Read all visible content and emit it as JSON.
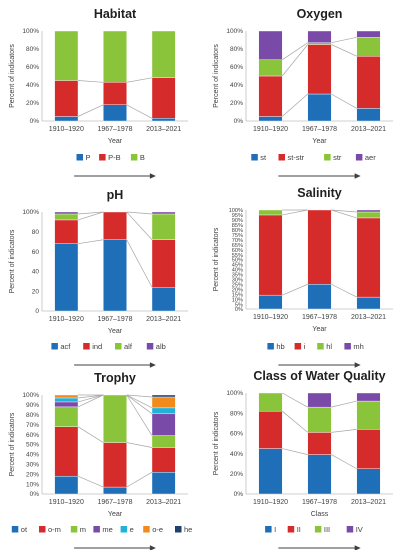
{
  "colors": {
    "blue": "#1f6fb8",
    "red": "#d62b2b",
    "green": "#8ac43a",
    "purple": "#7a4aa8",
    "cyan": "#22b1d8",
    "orange": "#f28a1c",
    "navy": "#1f3f6e",
    "connector": "#a6a6a6",
    "arrow": "#404040"
  },
  "chart_data": [
    {
      "type": "bar",
      "stacked": true,
      "title": "Habitat",
      "xlabel": "Year",
      "ylabel": "Percent of indicators",
      "ylim": [
        0,
        100
      ],
      "y_ticks": [
        "0%",
        "20%",
        "40%",
        "60%",
        "80%",
        "100%"
      ],
      "categories": [
        "1910–1920",
        "1967–1978",
        "2013–2021"
      ],
      "series": [
        {
          "name": "P",
          "color": "#1f6fb8",
          "values": [
            5,
            18,
            3
          ]
        },
        {
          "name": "P-B",
          "color": "#d62b2b",
          "values": [
            40,
            25,
            45
          ]
        },
        {
          "name": "B",
          "color": "#8ac43a",
          "values": [
            55,
            57,
            52
          ]
        }
      ],
      "connectors": true,
      "legend_position": "bottom"
    },
    {
      "type": "bar",
      "stacked": true,
      "title": "Oxygen",
      "xlabel": "Year",
      "ylabel": "Percent of indicators",
      "ylim": [
        0,
        100
      ],
      "y_ticks": [
        "0%",
        "20%",
        "40%",
        "60%",
        "80%",
        "100%"
      ],
      "categories": [
        "1910–1920",
        "1967–1978",
        "2013–2021"
      ],
      "series": [
        {
          "name": "st",
          "color": "#1f6fb8",
          "values": [
            5,
            30,
            14
          ]
        },
        {
          "name": "st-str",
          "color": "#d62b2b",
          "values": [
            45,
            55,
            58
          ]
        },
        {
          "name": "str",
          "color": "#8ac43a",
          "values": [
            18,
            2,
            21
          ]
        },
        {
          "name": "aer",
          "color": "#7a4aa8",
          "values": [
            32,
            13,
            7
          ]
        }
      ],
      "connectors": true,
      "legend_position": "bottom"
    },
    {
      "type": "bar",
      "stacked": true,
      "title": "pH",
      "xlabel": "Year",
      "ylabel": "Percent of indicators",
      "ylim": [
        0,
        100
      ],
      "y_ticks": [
        "0",
        "20",
        "40",
        "60",
        "80",
        "100%"
      ],
      "categories": [
        "1910–1920",
        "1967–1978",
        "2013–2021"
      ],
      "series": [
        {
          "name": "acf",
          "color": "#1f6fb8",
          "values": [
            68,
            72,
            24
          ]
        },
        {
          "name": "ind",
          "color": "#d62b2b",
          "values": [
            24,
            28,
            48
          ]
        },
        {
          "name": "alf",
          "color": "#8ac43a",
          "values": [
            6,
            0,
            26
          ]
        },
        {
          "name": "alb",
          "color": "#7a4aa8",
          "values": [
            2,
            0,
            2
          ]
        }
      ],
      "connectors": true,
      "legend_position": "bottom"
    },
    {
      "type": "bar",
      "stacked": true,
      "title": "Salinity",
      "xlabel": "Year",
      "ylabel": "Percent of indicators",
      "ylim": [
        0,
        100
      ],
      "y_ticks": [
        "0%",
        "5%",
        "10%",
        "15%",
        "20%",
        "25%",
        "30%",
        "35%",
        "40%",
        "45%",
        "50%",
        "55%",
        "60%",
        "65%",
        "70%",
        "75%",
        "80%",
        "85%",
        "90%",
        "95%",
        "100%"
      ],
      "categories": [
        "1910–1920",
        "1967–1978",
        "2013–2021"
      ],
      "series": [
        {
          "name": "hb",
          "color": "#1f6fb8",
          "values": [
            14,
            25,
            12
          ]
        },
        {
          "name": "i",
          "color": "#d62b2b",
          "values": [
            81,
            75,
            80
          ]
        },
        {
          "name": "hl",
          "color": "#8ac43a",
          "values": [
            5,
            0,
            6
          ]
        },
        {
          "name": "mh",
          "color": "#7a4aa8",
          "values": [
            0,
            0,
            2
          ]
        }
      ],
      "connectors": true,
      "legend_position": "bottom"
    },
    {
      "type": "bar",
      "stacked": true,
      "title": "Trophy",
      "xlabel": "Year",
      "ylabel": "Percent of indicators",
      "ylim": [
        0,
        100
      ],
      "y_ticks": [
        "0%",
        "10%",
        "20%",
        "30%",
        "40%",
        "50%",
        "60%",
        "70%",
        "80%",
        "90%",
        "100%"
      ],
      "categories": [
        "1910–1920",
        "1967–1978",
        "2013–2021"
      ],
      "series": [
        {
          "name": "ot",
          "color": "#1f6fb8",
          "values": [
            18,
            7,
            22
          ]
        },
        {
          "name": "o-m",
          "color": "#d62b2b",
          "values": [
            50,
            45,
            25
          ]
        },
        {
          "name": "m",
          "color": "#8ac43a",
          "values": [
            20,
            48,
            12
          ]
        },
        {
          "name": "me",
          "color": "#7a4aa8",
          "values": [
            5,
            0,
            22
          ]
        },
        {
          "name": "e",
          "color": "#22b1d8",
          "values": [
            4,
            0,
            6
          ]
        },
        {
          "name": "o-e",
          "color": "#f28a1c",
          "values": [
            3,
            0,
            11
          ]
        },
        {
          "name": "he",
          "color": "#1f3f6e",
          "values": [
            0,
            0,
            2
          ]
        }
      ],
      "connectors": true,
      "legend_position": "bottom"
    },
    {
      "type": "bar",
      "stacked": true,
      "title": "Class of Water Quality",
      "xlabel": "Class",
      "ylabel": "Percent of indicators",
      "ylim": [
        0,
        100
      ],
      "y_ticks": [
        "0%",
        "20%",
        "40%",
        "60%",
        "80%",
        "100%"
      ],
      "categories": [
        "1910–1920",
        "1967–1978",
        "2013–2021"
      ],
      "series": [
        {
          "name": "I",
          "color": "#1f6fb8",
          "values": [
            45,
            39,
            25
          ]
        },
        {
          "name": "II",
          "color": "#d62b2b",
          "values": [
            37,
            22,
            39
          ]
        },
        {
          "name": "III",
          "color": "#8ac43a",
          "values": [
            18,
            25,
            28
          ]
        },
        {
          "name": "IV",
          "color": "#7a4aa8",
          "values": [
            0,
            14,
            8
          ]
        }
      ],
      "connectors": true,
      "legend_position": "bottom"
    }
  ]
}
